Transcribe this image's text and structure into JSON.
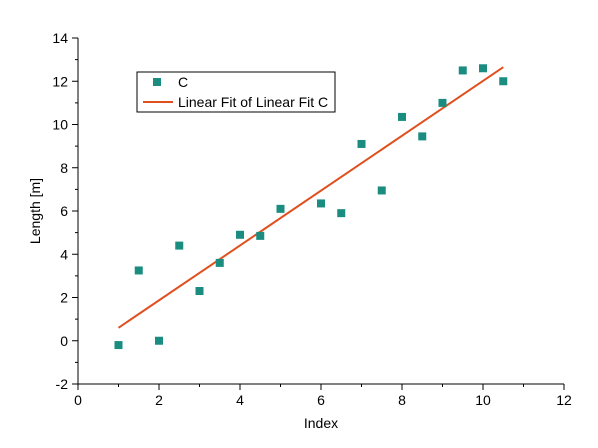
{
  "chart_data": {
    "type": "scatter",
    "title": "",
    "xlabel": "Index",
    "ylabel": "Length [m]",
    "xlim": [
      0,
      12
    ],
    "ylim": [
      -2,
      14
    ],
    "x_ticks": [
      0,
      2,
      4,
      6,
      8,
      10,
      12
    ],
    "y_ticks": [
      -2,
      0,
      2,
      4,
      6,
      8,
      10,
      12,
      14
    ],
    "x_tick_labels": [
      "0",
      "2",
      "4",
      "6",
      "8",
      "10",
      "12"
    ],
    "y_tick_labels": [
      "-2",
      "0",
      "2",
      "4",
      "6",
      "8",
      "10",
      "12",
      "14"
    ],
    "grid": false,
    "legend_position": "top-left",
    "series": [
      {
        "name": "C",
        "kind": "scatter",
        "marker": "square",
        "color": "#1a8c80",
        "x": [
          1.0,
          1.5,
          2.0,
          2.5,
          3.0,
          3.5,
          4.0,
          4.5,
          5.0,
          6.0,
          6.5,
          7.0,
          7.5,
          8.0,
          8.5,
          9.0,
          9.5,
          10.0,
          10.5
        ],
        "y": [
          -0.2,
          3.25,
          0.0,
          4.4,
          2.3,
          3.6,
          4.9,
          4.85,
          6.1,
          6.35,
          5.9,
          9.1,
          6.95,
          10.35,
          9.45,
          11.0,
          12.5,
          12.6,
          12.0
        ]
      },
      {
        "name": "Linear Fit of Linear Fit C",
        "kind": "line",
        "color": "#e0501e",
        "x": [
          1.0,
          10.5
        ],
        "y": [
          0.6,
          12.65
        ]
      }
    ]
  }
}
